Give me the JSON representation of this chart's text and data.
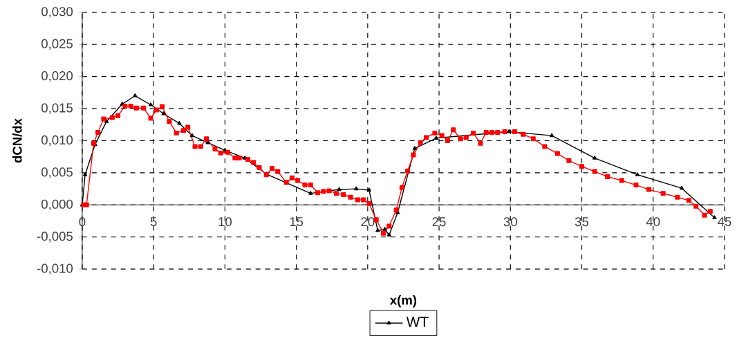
{
  "chart_data": {
    "type": "line",
    "xlabel": "x(m)",
    "ylabel": "dCN/dx",
    "xlim": [
      0,
      45
    ],
    "ylim": [
      -0.01,
      0.03
    ],
    "xticks": [
      0,
      5,
      10,
      15,
      20,
      25,
      30,
      35,
      40,
      45
    ],
    "yticks": [
      {
        "value": -0.01,
        "label": "-0,010"
      },
      {
        "value": -0.005,
        "label": "-0,005"
      },
      {
        "value": 0,
        "label": "0,000"
      },
      {
        "value": 0.005,
        "label": "0,005"
      },
      {
        "value": 0.01,
        "label": "0,010"
      },
      {
        "value": 0.015,
        "label": "0,015"
      },
      {
        "value": 0.02,
        "label": "0,020"
      },
      {
        "value": 0.025,
        "label": "0,025"
      },
      {
        "value": 0.03,
        "label": "0,030"
      }
    ],
    "grid": true,
    "legend": "bottom",
    "line_style": "solid",
    "series": [
      {
        "name": "WT",
        "color": "#000000",
        "marker": "triangle",
        "x": [
          0.0,
          0.2,
          0.9,
          1.7,
          2.8,
          3.7,
          4.8,
          5.7,
          6.8,
          7.7,
          8.8,
          10.0,
          11.4,
          12.9,
          16.0,
          18.0,
          19.2,
          20.1,
          20.7,
          21.2,
          21.5,
          22.1,
          23.3,
          24.8,
          29.9,
          32.9,
          35.9,
          38.9,
          42.0,
          44.3
        ],
        "values": [
          0.0,
          0.0047,
          0.0094,
          0.013,
          0.0157,
          0.017,
          0.0156,
          0.0142,
          0.0127,
          0.0108,
          0.0097,
          0.0085,
          0.0073,
          0.0048,
          0.0018,
          0.0024,
          0.0025,
          0.0023,
          -0.004,
          -0.0038,
          -0.0047,
          -0.0012,
          0.0088,
          0.0104,
          0.0114,
          0.0108,
          0.0073,
          0.0047,
          0.0026,
          -0.002
        ]
      },
      {
        "color": "#ff0000",
        "marker": "square",
        "x": [
          0.1,
          0.3,
          0.8,
          1.1,
          1.5,
          2.1,
          2.5,
          3.0,
          3.4,
          3.8,
          4.3,
          4.8,
          5.2,
          5.6,
          6.1,
          6.6,
          7.1,
          7.4,
          7.9,
          8.3,
          8.7,
          9.3,
          9.7,
          10.2,
          10.7,
          11.0,
          11.6,
          12.0,
          12.4,
          12.9,
          13.3,
          13.7,
          14.3,
          14.7,
          15.1,
          15.6,
          16.0,
          16.5,
          16.9,
          17.3,
          17.8,
          18.3,
          18.8,
          19.3,
          19.7,
          20.1,
          20.6,
          21.1,
          21.5,
          22.0,
          22.4,
          22.8,
          23.2,
          23.7,
          24.1,
          24.7,
          25.2,
          25.6,
          26.0,
          26.5,
          26.9,
          27.4,
          27.9,
          28.3,
          28.7,
          29.1,
          29.6,
          30.3,
          30.9,
          31.6,
          32.4,
          33.3,
          34.1,
          35.0,
          35.9,
          36.8,
          37.8,
          38.8,
          39.7,
          40.7,
          41.7,
          42.5,
          43.0,
          43.6,
          44.0
        ],
        "values": [
          0.0,
          0.0,
          0.0096,
          0.0113,
          0.0134,
          0.0136,
          0.0139,
          0.0154,
          0.0154,
          0.0151,
          0.0151,
          0.0135,
          0.0148,
          0.0153,
          0.013,
          0.0112,
          0.0116,
          0.0121,
          0.0091,
          0.0091,
          0.0103,
          0.0087,
          0.0081,
          0.0082,
          0.0073,
          0.0073,
          0.0071,
          0.0066,
          0.0058,
          0.0047,
          0.0057,
          0.0052,
          0.0035,
          0.0042,
          0.0038,
          0.0031,
          0.0031,
          0.0019,
          0.0021,
          0.0022,
          0.0018,
          0.0016,
          0.0012,
          0.0008,
          0.0008,
          0.0002,
          -0.0023,
          -0.0044,
          -0.0033,
          -0.0008,
          0.0027,
          0.0053,
          0.0078,
          0.0097,
          0.0105,
          0.0112,
          0.0108,
          0.01,
          0.0117,
          0.0103,
          0.0105,
          0.0112,
          0.0096,
          0.0113,
          0.0113,
          0.0113,
          0.0114,
          0.0114,
          0.011,
          0.0103,
          0.0091,
          0.008,
          0.0069,
          0.006,
          0.0052,
          0.0044,
          0.0038,
          0.0031,
          0.0024,
          0.0018,
          0.0012,
          0.0007,
          -0.0002,
          -0.0016,
          -0.001
        ]
      }
    ]
  }
}
